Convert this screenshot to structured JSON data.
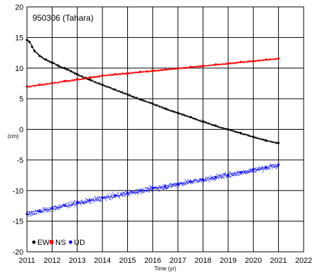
{
  "chart_data": {
    "type": "scatter",
    "title": "950306 (Tahara)",
    "xlabel": "Time (yr)",
    "ylabel": "(cm)",
    "xlim": [
      2011,
      2022
    ],
    "ylim": [
      -20,
      20
    ],
    "x_ticks": [
      "2011",
      "2012",
      "2013",
      "2014",
      "2015",
      "2016",
      "2017",
      "2018",
      "2019",
      "2020",
      "2021",
      "2022"
    ],
    "y_ticks": [
      "20",
      "15",
      "10",
      "5",
      "0",
      "-5",
      "-10",
      "-15",
      "-20"
    ],
    "grid": true,
    "legend_placement": "bottom-left",
    "series": [
      {
        "name": "EW",
        "color": "#000000",
        "x": [
          2011.0,
          2011.1,
          2011.2,
          2011.3,
          2011.5,
          2011.75,
          2012.0,
          2012.25,
          2012.5,
          2012.75,
          2013.0,
          2013.5,
          2014.0,
          2014.5,
          2015.0,
          2015.5,
          2016.0,
          2016.5,
          2017.0,
          2017.5,
          2018.0,
          2018.5,
          2019.0,
          2019.5,
          2020.0,
          2020.5,
          2021.0
        ],
        "y": [
          14.6,
          14.3,
          13.5,
          12.8,
          12.0,
          11.4,
          10.9,
          10.4,
          10.0,
          9.5,
          9.0,
          8.1,
          7.3,
          6.5,
          5.7,
          4.9,
          4.2,
          3.4,
          2.7,
          2.0,
          1.3,
          0.6,
          0.0,
          -0.6,
          -1.2,
          -1.8,
          -2.2
        ]
      },
      {
        "name": "NS",
        "color": "#ff0000",
        "x": [
          2011.0,
          2011.5,
          2012.0,
          2012.5,
          2013.0,
          2013.5,
          2014.0,
          2014.5,
          2015.0,
          2015.5,
          2016.0,
          2016.5,
          2017.0,
          2017.5,
          2018.0,
          2018.5,
          2019.0,
          2019.5,
          2020.0,
          2020.5,
          2021.0
        ],
        "y": [
          7.0,
          7.3,
          7.6,
          7.9,
          8.2,
          8.5,
          8.8,
          9.0,
          9.2,
          9.4,
          9.6,
          9.8,
          10.0,
          10.2,
          10.4,
          10.6,
          10.8,
          11.0,
          11.2,
          11.4,
          11.6
        ]
      },
      {
        "name": "UD",
        "color": "#0000ff",
        "x": [
          2011.0,
          2011.5,
          2012.0,
          2012.5,
          2013.0,
          2013.5,
          2014.0,
          2014.5,
          2015.0,
          2015.5,
          2016.0,
          2016.5,
          2017.0,
          2017.5,
          2018.0,
          2018.5,
          2019.0,
          2019.5,
          2020.0,
          2020.5,
          2021.0
        ],
        "y": [
          -13.8,
          -13.3,
          -12.9,
          -12.4,
          -12.0,
          -11.6,
          -11.2,
          -10.8,
          -10.4,
          -10.0,
          -9.6,
          -9.3,
          -8.9,
          -8.5,
          -8.2,
          -7.8,
          -7.4,
          -7.0,
          -6.6,
          -6.2,
          -5.8
        ]
      }
    ]
  }
}
